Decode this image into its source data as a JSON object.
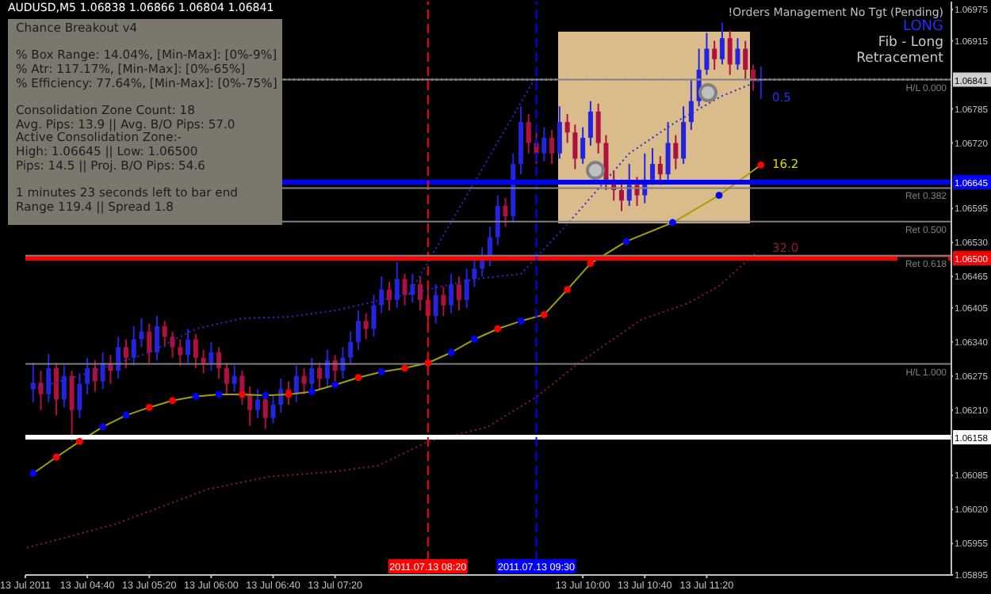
{
  "chart_data": {
    "type": "candlestick",
    "title": "AUDUSD,M5  1.06838 1.06866 1.06804 1.06841",
    "subtitle": "!Orders Management No Tgt (Pending)",
    "x": [
      "2011-07-13T04:05",
      "2011-07-13T04:10",
      "2011-07-13T04:15",
      "2011-07-13T04:20",
      "2011-07-13T04:25",
      "2011-07-13T04:30",
      "2011-07-13T04:35",
      "2011-07-13T04:40",
      "2011-07-13T04:45",
      "2011-07-13T04:50",
      "2011-07-13T04:55",
      "2011-07-13T05:00",
      "2011-07-13T05:05",
      "2011-07-13T05:10",
      "2011-07-13T05:15",
      "2011-07-13T05:20",
      "2011-07-13T05:25",
      "2011-07-13T05:30",
      "2011-07-13T05:35",
      "2011-07-13T05:40",
      "2011-07-13T05:45",
      "2011-07-13T05:50",
      "2011-07-13T05:55",
      "2011-07-13T06:00",
      "2011-07-13T06:05",
      "2011-07-13T06:10",
      "2011-07-13T06:15",
      "2011-07-13T06:20",
      "2011-07-13T06:25",
      "2011-07-13T06:30",
      "2011-07-13T06:35",
      "2011-07-13T06:40",
      "2011-07-13T06:45",
      "2011-07-13T06:50",
      "2011-07-13T06:55",
      "2011-07-13T07:00",
      "2011-07-13T07:05",
      "2011-07-13T07:10",
      "2011-07-13T07:15",
      "2011-07-13T07:20",
      "2011-07-13T07:25",
      "2011-07-13T07:30",
      "2011-07-13T07:35",
      "2011-07-13T07:40",
      "2011-07-13T07:45",
      "2011-07-13T07:50",
      "2011-07-13T07:55",
      "2011-07-13T08:00",
      "2011-07-13T08:05",
      "2011-07-13T08:10",
      "2011-07-13T08:15",
      "2011-07-13T08:20",
      "2011-07-13T08:25",
      "2011-07-13T08:30",
      "2011-07-13T08:35",
      "2011-07-13T08:40",
      "2011-07-13T08:45",
      "2011-07-13T08:50",
      "2011-07-13T08:55",
      "2011-07-13T09:00",
      "2011-07-13T09:05",
      "2011-07-13T09:10",
      "2011-07-13T09:15",
      "2011-07-13T09:20",
      "2011-07-13T09:25",
      "2011-07-13T09:30",
      "2011-07-13T09:35",
      "2011-07-13T09:40",
      "2011-07-13T09:45",
      "2011-07-13T09:50",
      "2011-07-13T09:55",
      "2011-07-13T10:00",
      "2011-07-13T10:05",
      "2011-07-13T10:10",
      "2011-07-13T10:15",
      "2011-07-13T10:20",
      "2011-07-13T10:25",
      "2011-07-13T10:30",
      "2011-07-13T10:35",
      "2011-07-13T10:40",
      "2011-07-13T10:45",
      "2011-07-13T10:50",
      "2011-07-13T10:55",
      "2011-07-13T11:00",
      "2011-07-13T11:05",
      "2011-07-13T11:10",
      "2011-07-13T11:15",
      "2011-07-13T11:20",
      "2011-07-13T11:25",
      "2011-07-13T11:30",
      "2011-07-13T11:35",
      "2011-07-13T11:40",
      "2011-07-13T11:45",
      "2011-07-13T11:50",
      "2011-07-13T11:55"
    ],
    "ohlc": [
      [
        1.0625,
        1.063,
        1.06225,
        1.06262
      ],
      [
        1.06262,
        1.06285,
        1.0621,
        1.0624
      ],
      [
        1.0624,
        1.06317,
        1.06225,
        1.0629
      ],
      [
        1.0629,
        1.063,
        1.062,
        1.0623
      ],
      [
        1.0623,
        1.06295,
        1.06215,
        1.06275
      ],
      [
        1.06275,
        1.06285,
        1.0615,
        1.0621
      ],
      [
        1.0621,
        1.0628,
        1.06195,
        1.0626
      ],
      [
        1.0626,
        1.0631,
        1.0624,
        1.0629
      ],
      [
        1.0629,
        1.06305,
        1.06245,
        1.06265
      ],
      [
        1.06265,
        1.0632,
        1.0625,
        1.063
      ],
      [
        1.063,
        1.06315,
        1.0626,
        1.06285
      ],
      [
        1.06285,
        1.0635,
        1.0627,
        1.0633
      ],
      [
        1.0633,
        1.06345,
        1.0629,
        1.0631
      ],
      [
        1.0631,
        1.0637,
        1.06295,
        1.06345
      ],
      [
        1.06345,
        1.06385,
        1.0633,
        1.0636
      ],
      [
        1.0636,
        1.06375,
        1.063,
        1.0632
      ],
      [
        1.0632,
        1.0639,
        1.06305,
        1.0637
      ],
      [
        1.0637,
        1.0638,
        1.0633,
        1.0635
      ],
      [
        1.0635,
        1.0636,
        1.0631,
        1.0633
      ],
      [
        1.0633,
        1.06345,
        1.06295,
        1.06315
      ],
      [
        1.06315,
        1.06365,
        1.063,
        1.06345
      ],
      [
        1.06345,
        1.06355,
        1.0629,
        1.0631
      ],
      [
        1.0631,
        1.06325,
        1.0628,
        1.063
      ],
      [
        1.063,
        1.0634,
        1.06285,
        1.0632
      ],
      [
        1.0632,
        1.0633,
        1.0627,
        1.0629
      ],
      [
        1.0629,
        1.063,
        1.0624,
        1.0626
      ],
      [
        1.0626,
        1.06295,
        1.06245,
        1.06275
      ],
      [
        1.06275,
        1.06285,
        1.0622,
        1.0624
      ],
      [
        1.0624,
        1.06255,
        1.0618,
        1.0621
      ],
      [
        1.0621,
        1.0625,
        1.06195,
        1.0623
      ],
      [
        1.0623,
        1.0624,
        1.06174,
        1.06195
      ],
      [
        1.06195,
        1.0624,
        1.06185,
        1.0622
      ],
      [
        1.0622,
        1.0627,
        1.06205,
        1.0625
      ],
      [
        1.0625,
        1.06265,
        1.0622,
        1.0624
      ],
      [
        1.0624,
        1.06295,
        1.06225,
        1.06275
      ],
      [
        1.06275,
        1.0629,
        1.0624,
        1.0626
      ],
      [
        1.0626,
        1.0631,
        1.06245,
        1.0629
      ],
      [
        1.0629,
        1.063,
        1.0625,
        1.0627
      ],
      [
        1.0627,
        1.06325,
        1.06255,
        1.06305
      ],
      [
        1.06305,
        1.06315,
        1.06265,
        1.06285
      ],
      [
        1.06285,
        1.0633,
        1.0627,
        1.0631
      ],
      [
        1.0631,
        1.0636,
        1.063,
        1.0634
      ],
      [
        1.0634,
        1.064,
        1.06325,
        1.0638
      ],
      [
        1.0638,
        1.06395,
        1.06345,
        1.06365
      ],
      [
        1.06365,
        1.0643,
        1.0635,
        1.0641
      ],
      [
        1.0641,
        1.06465,
        1.06395,
        1.0644
      ],
      [
        1.0644,
        1.06455,
        1.064,
        1.0642
      ],
      [
        1.0642,
        1.06493,
        1.06405,
        1.0646
      ],
      [
        1.0646,
        1.0647,
        1.0641,
        1.0643
      ],
      [
        1.0643,
        1.0647,
        1.06415,
        1.0645
      ],
      [
        1.0645,
        1.06465,
        1.064,
        1.0642
      ],
      [
        1.0642,
        1.0644,
        1.0637,
        1.0639
      ],
      [
        1.0639,
        1.0645,
        1.06375,
        1.0643
      ],
      [
        1.0643,
        1.06445,
        1.0639,
        1.0641
      ],
      [
        1.0641,
        1.0647,
        1.06395,
        1.0645
      ],
      [
        1.0645,
        1.06465,
        1.064,
        1.0642
      ],
      [
        1.0642,
        1.0648,
        1.06405,
        1.0646
      ],
      [
        1.0646,
        1.065,
        1.06445,
        1.0648
      ],
      [
        1.0648,
        1.0652,
        1.06465,
        1.065
      ],
      [
        1.065,
        1.0656,
        1.06485,
        1.0654
      ],
      [
        1.0654,
        1.0662,
        1.06525,
        1.066
      ],
      [
        1.066,
        1.06615,
        1.0656,
        1.0658
      ],
      [
        1.0658,
        1.067,
        1.0657,
        1.0668
      ],
      [
        1.0668,
        1.0679,
        1.0666,
        1.0676
      ],
      [
        1.0676,
        1.06775,
        1.067,
        1.0672
      ],
      [
        1.0672,
        1.0674,
        1.0668,
        1.067
      ],
      [
        1.067,
        1.0675,
        1.06685,
        1.0673
      ],
      [
        1.0673,
        1.06745,
        1.0668,
        1.067
      ],
      [
        1.067,
        1.0679,
        1.0669,
        1.0676
      ],
      [
        1.0676,
        1.06775,
        1.0672,
        1.0674
      ],
      [
        1.0674,
        1.06755,
        1.0667,
        1.0669
      ],
      [
        1.0669,
        1.0675,
        1.0668,
        1.0673
      ],
      [
        1.0673,
        1.068,
        1.06715,
        1.0678
      ],
      [
        1.0678,
        1.06795,
        1.067,
        1.0672
      ],
      [
        1.0672,
        1.06735,
        1.0663,
        1.0665
      ],
      [
        1.0665,
        1.06665,
        1.0661,
        1.0663
      ],
      [
        1.0663,
        1.0665,
        1.0659,
        1.0661
      ],
      [
        1.0661,
        1.0668,
        1.066,
        1.0664
      ],
      [
        1.0664,
        1.06655,
        1.066,
        1.0662
      ],
      [
        1.0662,
        1.067,
        1.06605,
        1.0665
      ],
      [
        1.0665,
        1.0671,
        1.0664,
        1.0668
      ],
      [
        1.0668,
        1.06695,
        1.0664,
        1.0666
      ],
      [
        1.0666,
        1.0676,
        1.0665,
        1.0672
      ],
      [
        1.0672,
        1.06735,
        1.0667,
        1.0669
      ],
      [
        1.0669,
        1.0679,
        1.0668,
        1.0676
      ],
      [
        1.0676,
        1.0684,
        1.06745,
        1.068
      ],
      [
        1.068,
        1.069,
        1.0679,
        1.0686
      ],
      [
        1.0686,
        1.0693,
        1.0685,
        1.069
      ],
      [
        1.069,
        1.06915,
        1.0686,
        1.0688
      ],
      [
        1.0688,
        1.0695,
        1.0687,
        1.0692
      ],
      [
        1.0692,
        1.06935,
        1.0685,
        1.0687
      ],
      [
        1.0687,
        1.0692,
        1.0686,
        1.069
      ],
      [
        1.069,
        1.06915,
        1.0684,
        1.0686
      ],
      [
        1.0686,
        1.0687,
        1.0682,
        1.06838
      ],
      [
        1.06838,
        1.06866,
        1.06804,
        1.06841
      ]
    ],
    "colors": [
      "#2424e0",
      "#b01040",
      "#2424e0",
      "#b01040",
      "#2424e0",
      "#b01040",
      "#2424e0",
      "#2424e0",
      "#b01040",
      "#2424e0",
      "#b01040",
      "#2424e0",
      "#b01040",
      "#2424e0",
      "#2424e0",
      "#b01040",
      "#2424e0",
      "#b01040",
      "#b01040",
      "#b01040",
      "#2424e0",
      "#b01040",
      "#b01040",
      "#2424e0",
      "#b01040",
      "#b01040",
      "#2424e0",
      "#b01040",
      "#b01040",
      "#2424e0",
      "#b01040",
      "#2424e0",
      "#2424e0",
      "#b01040",
      "#2424e0",
      "#b01040",
      "#2424e0",
      "#b01040",
      "#2424e0",
      "#b01040",
      "#2424e0",
      "#2424e0",
      "#2424e0",
      "#b01040",
      "#2424e0",
      "#2424e0",
      "#b01040",
      "#2424e0",
      "#b01040",
      "#2424e0",
      "#b01040",
      "#b01040",
      "#2424e0",
      "#b01040",
      "#2424e0",
      "#b01040",
      "#2424e0",
      "#2424e0",
      "#2424e0",
      "#2424e0",
      "#2424e0",
      "#b01040",
      "#2424e0",
      "#2424e0",
      "#b01040",
      "#b01040",
      "#2424e0",
      "#b01040",
      "#2424e0",
      "#b01040",
      "#b01040",
      "#2424e0",
      "#2424e0",
      "#b01040",
      "#b01040",
      "#b01040",
      "#b01040",
      "#2424e0",
      "#b01040",
      "#2424e0",
      "#2424e0",
      "#b01040",
      "#2424e0",
      "#b01040",
      "#2424e0",
      "#2424e0",
      "#2424e0",
      "#2424e0",
      "#b01040",
      "#2424e0",
      "#b01040",
      "#2424e0",
      "#b01040",
      "#b01040",
      "#2424e0"
    ],
    "series": [
      {
        "type": "line",
        "color": "#a0a000",
        "marker": "circle",
        "line_style": "solid",
        "x": [
          "2011-07-13T04:05",
          "2011-07-13T04:20",
          "2011-07-13T04:35",
          "2011-07-13T04:50",
          "2011-07-13T05:05",
          "2011-07-13T05:20",
          "2011-07-13T05:35",
          "2011-07-13T05:50",
          "2011-07-13T06:05",
          "2011-07-13T06:20",
          "2011-07-13T06:35",
          "2011-07-13T06:50",
          "2011-07-13T07:05",
          "2011-07-13T07:20",
          "2011-07-13T07:35",
          "2011-07-13T07:50",
          "2011-07-13T08:05",
          "2011-07-13T08:20",
          "2011-07-13T08:35",
          "2011-07-13T08:50",
          "2011-07-13T09:05",
          "2011-07-13T09:20",
          "2011-07-13T09:35",
          "2011-07-13T09:50",
          "2011-07-13T10:05",
          "2011-07-13T10:28",
          "2011-07-13T10:58",
          "2011-07-13T11:28",
          "2011-07-13T11:55"
        ],
        "values": [
          1.06089,
          1.0612,
          1.0615,
          1.06178,
          1.062,
          1.06215,
          1.06228,
          1.06236,
          1.0624,
          1.0624,
          1.06238,
          1.0624,
          1.06245,
          1.06258,
          1.06272,
          1.06283,
          1.0629,
          1.063,
          1.0632,
          1.06345,
          1.06365,
          1.0638,
          1.06392,
          1.0644,
          1.0649,
          1.06532,
          1.06568,
          1.0662,
          1.06678
        ],
        "colors": [
          "#0000ff",
          "#ff0000",
          "#ff0000",
          "#0000ff",
          "#0000ff",
          "#ff0000",
          "#ff0000",
          "#0000ff",
          "#0000ff",
          "#ff0000",
          "#0000ff",
          "#ff0000",
          "#0000ff",
          "#0000ff",
          "#ff0000",
          "#0000ff",
          "#ff0000",
          "#ff0000",
          "#0000ff",
          "#0000ff",
          "#ff0000",
          "#0000ff",
          "#ff0000",
          "#ff0000",
          "#ff0000",
          "#0000ff",
          "#0000ff",
          "#0000ff",
          "#ff0000"
        ]
      },
      {
        "type": "line",
        "color": "#2a2ad0",
        "marker": "none",
        "line_style": "dotted",
        "x": [
          "2011-07-13T04:05",
          "2011-07-13T04:40",
          "2011-07-13T05:20",
          "2011-07-13T05:50",
          "2011-07-13T06:20",
          "2011-07-13T06:50",
          "2011-07-13T07:20",
          "2011-07-13T07:50",
          "2011-07-13T08:20",
          "2011-07-13T08:50",
          "2011-07-13T09:20",
          "2011-07-13T09:50",
          "2011-07-13T10:30",
          "2011-07-13T11:00",
          "2011-07-13T11:30",
          "2011-07-13T11:55"
        ],
        "values": [
          1.0625,
          1.0628,
          1.0632,
          1.06365,
          1.06385,
          1.06388,
          1.064,
          1.0642,
          1.0644,
          1.0646,
          1.0647,
          1.06565,
          1.067,
          1.0676,
          1.0681,
          1.0684
        ]
      },
      {
        "type": "line",
        "color": "#8b1a3a",
        "marker": "none",
        "line_style": "dotted",
        "x": [
          "2011-07-13T04:01",
          "2011-07-13T04:58",
          "2011-07-13T05:58",
          "2011-07-13T06:38",
          "2011-07-13T07:18",
          "2011-07-13T07:48",
          "2011-07-13T08:20",
          "2011-07-13T08:58",
          "2011-07-13T09:30",
          "2011-07-13T09:58",
          "2011-07-13T10:38",
          "2011-07-13T11:08",
          "2011-07-13T11:28",
          "2011-07-13T11:53"
        ],
        "values": [
          1.05947,
          1.05992,
          1.06059,
          1.06083,
          1.06092,
          1.06104,
          1.0615,
          1.06177,
          1.06235,
          1.06301,
          1.06383,
          1.06414,
          1.06447,
          1.06514
        ]
      },
      {
        "type": "line",
        "color": "#2a2ad0",
        "marker": "none",
        "line_style": "dotted",
        "x": [
          "2011-07-13T08:08",
          "2011-07-13T09:30"
        ],
        "values": [
          1.06432,
          1.06848
        ]
      }
    ],
    "xlim": [
      "2011-07-13T04:00",
      "2011-07-13T13:58"
    ],
    "xticks": [
      {
        "value": "2011-07-13T04:00",
        "label": "13 Jul 2011"
      },
      {
        "value": "2011-07-13T04:40",
        "label": "13 Jul 04:40"
      },
      {
        "value": "2011-07-13T05:20",
        "label": "13 Jul 05:20"
      },
      {
        "value": "2011-07-13T06:00",
        "label": "13 Jul 06:00"
      },
      {
        "value": "2011-07-13T06:40",
        "label": "13 Jul 06:40"
      },
      {
        "value": "2011-07-13T07:20",
        "label": "13 Jul 07:20"
      },
      {
        "value": "2011-07-13T10:00",
        "label": "13 Jul 10:00"
      },
      {
        "value": "2011-07-13T10:40",
        "label": "13 Jul 10:40"
      },
      {
        "value": "2011-07-13T11:20",
        "label": "13 Jul 11:20"
      }
    ],
    "ylim": [
      1.05895,
      1.0699
    ],
    "yticks": [
      1.06975,
      1.06915,
      1.06785,
      {
        "value": 1.0672,
        "label": "1.06720"
      },
      1.06595,
      {
        "value": 1.0653,
        "label": "1.06530"
      },
      1.06465,
      1.06405,
      {
        "value": 1.0634,
        "label": "1.06340"
      },
      1.06275,
      {
        "value": 1.0621,
        "label": "1.06210"
      },
      1.06085,
      {
        "value": 1.0602,
        "label": "1.06020"
      },
      1.05955,
      1.05895
    ],
    "ref_lines": [
      {
        "axis": "y",
        "value": 1.06841,
        "label": "H/L 0.000",
        "color": "#808080"
      },
      {
        "axis": "y",
        "value": 1.06634,
        "label": "Ret 0.382",
        "color": "#808080"
      },
      {
        "axis": "y",
        "value": 1.0657,
        "label": "Ret 0.500",
        "color": "#808080"
      },
      {
        "axis": "y",
        "value": 1.06505,
        "label": "Ret 0.618",
        "color": "#808080"
      },
      {
        "axis": "y",
        "value": 1.06298,
        "label": "H/L 1.000",
        "color": "#808080"
      },
      {
        "axis": "y",
        "value": 1.06645,
        "label": "1.06645",
        "color": "#0000ff",
        "line_style": "solid"
      },
      {
        "axis": "y",
        "value": 1.065,
        "label": "1.06500",
        "color": "#ff0000",
        "line_style": "solid"
      },
      {
        "axis": "y",
        "value": 1.06158,
        "label": "1.06158",
        "color": "#ffffff",
        "line_style": "solid"
      },
      {
        "axis": "y",
        "value": 1.06841,
        "label": "1.06841",
        "color": "#d0d0d0",
        "line_style": "dotted"
      },
      {
        "axis": "x",
        "value": "2011-07-13T08:20",
        "label": "2011.07.13 08:20",
        "color": "#ff0000",
        "line_style": "dashed"
      },
      {
        "axis": "x",
        "value": "2011-07-13T09:30",
        "label": "2011.07.13 09:30",
        "color": "#0000ff",
        "line_style": "dashed"
      }
    ],
    "annotations": [
      "LONG",
      "Fib - Long",
      "Retracement",
      "Chance Breakout v4",
      "% Box Range: 14.04%, [Min-Max]: [0%-9%]",
      "% Atr: 117.17%, [Min-Max]: [0%-65%]",
      "% Efficiency: 77.64%, [Min-Max]: [0%-75%]",
      "Consolidation Zone Count: 18",
      "Avg. Pips: 13.9 || Avg. B/O Pips: 57.0",
      "Active Consolidation Zone:-",
      "High: 1.06645 || Low: 1.06500",
      "Pips: 14.5 || Proj. B/O Pips: 54.6",
      "1 minutes 23 seconds left to bar end",
      "Range 119.4 || Spread 1.8",
      "0.5",
      "16.2",
      "32.0"
    ]
  }
}
